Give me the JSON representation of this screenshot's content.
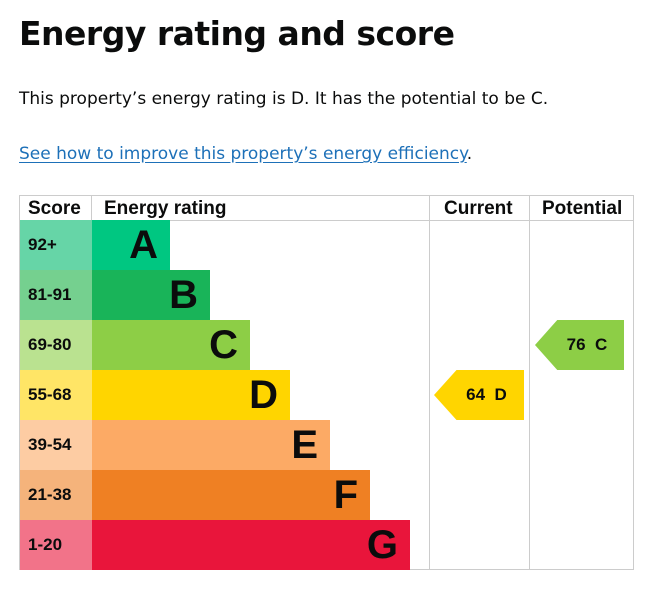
{
  "title": "Energy rating and score",
  "summary": "This property’s energy rating is D. It has the potential to be C.",
  "link": {
    "text": "See how to improve this property’s energy efficiency",
    "suffix": "."
  },
  "table": {
    "headers": {
      "score": "Score",
      "rating": "Energy rating",
      "current": "Current",
      "potential": "Potential"
    },
    "rows": [
      {
        "score": "92+",
        "band": "A",
        "color": "#00c781",
        "score_color": "#66d5a7"
      },
      {
        "score": "81-91",
        "band": "B",
        "color": "#19b459",
        "score_color": "#75d08f"
      },
      {
        "score": "69-80",
        "band": "C",
        "color": "#8dce46",
        "score_color": "#bae290"
      },
      {
        "score": "55-68",
        "band": "D",
        "color": "#ffd500",
        "score_color": "#ffe566"
      },
      {
        "score": "39-54",
        "band": "E",
        "color": "#fcaa65",
        "score_color": "#fdcca3"
      },
      {
        "score": "21-38",
        "band": "F",
        "color": "#ef8023",
        "score_color": "#f5b37b"
      },
      {
        "score": "1-20",
        "band": "G",
        "color": "#e9153b",
        "score_color": "#f27389"
      }
    ],
    "current": {
      "score": "64",
      "band": "D",
      "color": "#ffd500"
    },
    "potential": {
      "score": "76",
      "band": "C",
      "color": "#8dce46"
    }
  }
}
